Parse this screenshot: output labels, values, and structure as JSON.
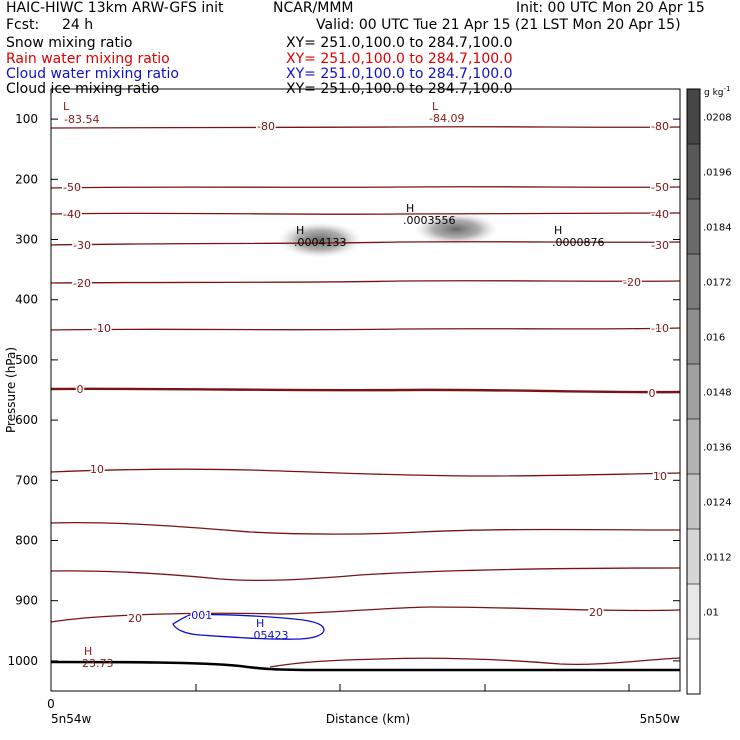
{
  "header": {
    "left_line1": "HAIC-HIWC 13km ARW-GFS init",
    "center_line1": "NCAR/MMM",
    "right_line1": "Init: 00 UTC Mon 20 Apr 15",
    "fcst_label": "Fcst:",
    "fcst_value": "24 h",
    "valid": "Valid: 00 UTC Tue 21 Apr 15 (21 LST Mon 20 Apr 15)"
  },
  "fields": [
    {
      "name": "Snow mixing ratio",
      "xy": "XY= 251.0,100.0 to 284.7,100.0",
      "color": "#000000"
    },
    {
      "name": "Rain water mixing ratio",
      "xy": "XY= 251.0,100.0 to 284.7,100.0",
      "color": "#e00000"
    },
    {
      "name": "Cloud water mixing ratio",
      "xy": "XY= 251.0,100.0 to 284.7,100.0",
      "color": "#1010c8"
    },
    {
      "name": "Cloud ice mixing ratio",
      "xy": "XY= 251.0,100.0 to 284.7,100.0",
      "color": "#000000"
    }
  ],
  "chart_data": {
    "type": "contour",
    "xlabel": "Distance (km)",
    "ylabel": "Pressure (hPa)",
    "x_start_label": "5n54w",
    "x_end_label": "5n50w",
    "x_origin_label": "0",
    "yticks": [
      100,
      200,
      300,
      400,
      500,
      600,
      700,
      800,
      900,
      1000
    ],
    "ylim": [
      1050,
      50
    ],
    "temperature_contours": [
      {
        "level": -80,
        "labels": [
          "-80",
          "-80"
        ]
      },
      {
        "level": -50,
        "labels": [
          "-50",
          "-50"
        ]
      },
      {
        "level": -40,
        "labels": [
          "-40",
          "-40"
        ]
      },
      {
        "level": -30,
        "labels": [
          "-30",
          "-30"
        ]
      },
      {
        "level": -20,
        "labels": [
          "-20",
          "-20"
        ]
      },
      {
        "level": -10,
        "labels": [
          "-10",
          "-10"
        ]
      },
      {
        "level": 0,
        "labels": [
          "0",
          "0"
        ]
      },
      {
        "level": 10,
        "labels": [
          "10",
          "10"
        ]
      },
      {
        "level": 20,
        "labels": [
          "20",
          "20"
        ]
      }
    ],
    "annotations": [
      {
        "mark": "L",
        "value": "-83.54",
        "color": "#8b1a1a"
      },
      {
        "mark": "L",
        "value": "-84.09",
        "color": "#8b1a1a"
      },
      {
        "mark": "H",
        "value": ".0003556",
        "color": "#000000"
      },
      {
        "mark": "H",
        "value": ".0004133",
        "color": "#000000"
      },
      {
        "mark": "H",
        "value": ".0000876",
        "color": "#000000"
      },
      {
        "mark": "H",
        "value": "23.73",
        "color": "#8b1a1a"
      },
      {
        "mark": "H",
        "value": ".05423",
        "color": "#1010c8"
      }
    ],
    "cloud_water_contour_label": ".001",
    "colorbar": {
      "unit": "g kg",
      "unit_exp": "-1",
      "labels": [
        ".0208",
        ".0196",
        ".0184",
        ".0172",
        ".016",
        ".0148",
        ".0136",
        ".0124",
        ".0112",
        ".01"
      ]
    }
  }
}
